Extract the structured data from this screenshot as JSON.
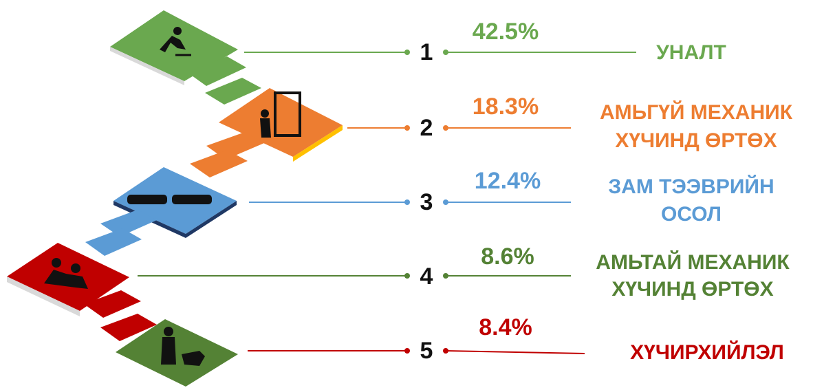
{
  "items": [
    {
      "number": "1",
      "percent": "42.5%",
      "label": [
        "УНАЛТ"
      ]
    },
    {
      "number": "2",
      "percent": "18.3%",
      "label": [
        "АМЬГҮЙ МЕХАНИК",
        "ХҮЧИНД ӨРТӨХ"
      ]
    },
    {
      "number": "3",
      "percent": "12.4%",
      "label": [
        "ЗАМ ТЭЭВРИЙН",
        "ОСОЛ"
      ]
    },
    {
      "number": "4",
      "percent": "8.6%",
      "label": [
        "АМЬТАЙ МЕХАНИК",
        "ХҮЧИНД ӨРТӨХ"
      ]
    },
    {
      "number": "5",
      "percent": "8.4%",
      "label": [
        "ХҮЧИРХИЙЛЭЛ"
      ]
    }
  ]
}
